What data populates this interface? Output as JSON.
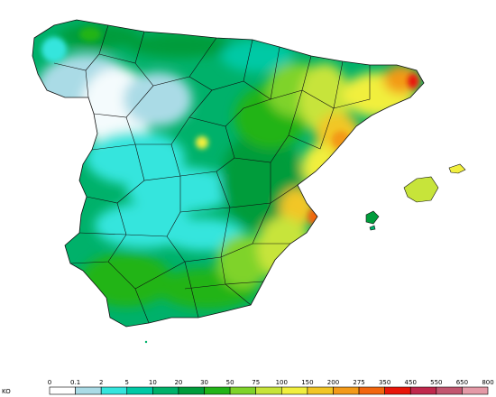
{
  "legend": {
    "unit_label": "KO",
    "ticks": [
      "0",
      "0.1",
      "2",
      "5",
      "10",
      "20",
      "30",
      "50",
      "75",
      "100",
      "150",
      "200",
      "275",
      "350",
      "450",
      "550",
      "650",
      "800"
    ],
    "colors": [
      "#ffffff",
      "#aadbe6",
      "#35e5dd",
      "#00c9a5",
      "#00b16a",
      "#009c3b",
      "#22b418",
      "#7fd32a",
      "#c7e43a",
      "#f1ef3e",
      "#f2c626",
      "#f39a19",
      "#f2660f",
      "#e81509",
      "#c0284c",
      "#c2566f",
      "#e49aa7"
    ]
  },
  "map": {
    "colors": {
      "sea": "#ffffff",
      "white_zone": "#f4fbfd",
      "light_blue": "#aadbe6",
      "cyan": "#35e5dd",
      "teal": "#00c9a5",
      "green": "#00b16a",
      "dark_green": "#009c3b",
      "bright_green": "#22b418",
      "lime": "#7fd32a",
      "yellow_green": "#c7e43a",
      "yellow": "#f1ef3e",
      "orange_yellow": "#f2c626",
      "orange": "#f39a19",
      "red_orange": "#f2660f",
      "red": "#e81509",
      "border": "#111111"
    }
  }
}
